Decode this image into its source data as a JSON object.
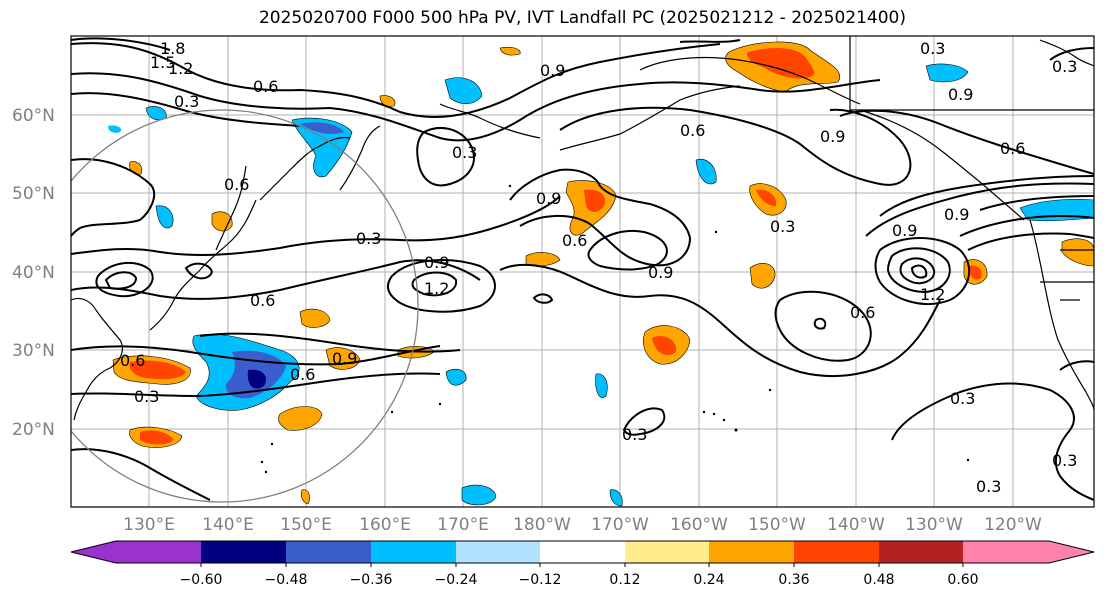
{
  "title": "2025020700 F000 500 hPa PV, IVT Landfall PC (2025021212 - 2025021400)",
  "map": {
    "lon_labels": [
      "130°E",
      "140°E",
      "150°E",
      "160°E",
      "170°E",
      "180°W",
      "170°W",
      "160°W",
      "150°W",
      "140°W",
      "130°W",
      "120°W"
    ],
    "lat_labels": [
      "20°N",
      "30°N",
      "40°N",
      "50°N",
      "60°N"
    ],
    "contour_labels": [
      "1.8",
      "1.5",
      "1.2",
      "0.3",
      "0.6",
      "0.3",
      "0.9",
      "0.6",
      "0.3",
      "0.9",
      "1.2",
      "0.6",
      "0.6",
      "0.9",
      "0.6",
      "0.3",
      "0.9",
      "0.9",
      "0.6",
      "0.9",
      "0.3",
      "0.6",
      "0.9",
      "0.6",
      "0.9",
      "0.6",
      "0.9",
      "1.2",
      "0.3",
      "0.3",
      "0.3",
      "0.3",
      "0.3",
      "0.3"
    ]
  },
  "colorbar": {
    "ticks": [
      "−0.60",
      "−0.48",
      "−0.36",
      "−0.24",
      "−0.12",
      "0.12",
      "0.24",
      "0.36",
      "0.48",
      "0.60"
    ],
    "colors": [
      "#9a32cd",
      "#000080",
      "#3a5fcd",
      "#00bfff",
      "#b0e2ff",
      "#ffffff",
      "#ffec8b",
      "#ffa500",
      "#ff4500",
      "#b22222",
      "#ff82ab"
    ]
  }
}
